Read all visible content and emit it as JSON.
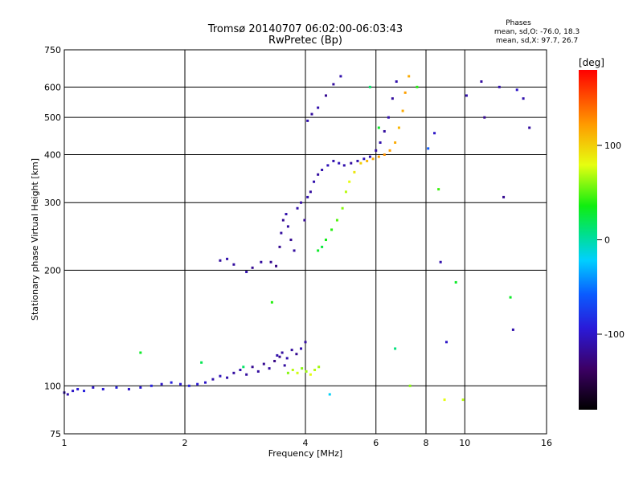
{
  "chart_data": {
    "type": "scatter",
    "title": "Tromsø 20140707 06:02:00-06:03:43",
    "subtitle": "RwPretec (Bp)",
    "xlabel": "Frequency [MHz]",
    "ylabel": "Stationary phase Virtual Height [km]",
    "x_scale": "log",
    "y_scale": "log",
    "xlim": [
      1,
      16
    ],
    "ylim": [
      75,
      750
    ],
    "x_ticks": [
      1,
      2,
      4,
      6,
      8,
      10,
      16
    ],
    "y_ticks": [
      75,
      100,
      200,
      300,
      400,
      500,
      600,
      750
    ],
    "grid": true,
    "phase_stats": {
      "title": "Phases",
      "line_o": "mean, sd,O: -76.0, 18.3",
      "line_x": "mean, sd,X:  97.7, 26.7"
    },
    "colorbar": {
      "label": "[deg]",
      "range": [
        -180,
        180
      ],
      "ticks": [
        100,
        0,
        -100
      ],
      "colormap": "rainbow"
    },
    "series": [
      {
        "points": [
          [
            1.0,
            96,
            -110
          ],
          [
            1.02,
            95,
            -110
          ],
          [
            1.05,
            97,
            -100
          ],
          [
            1.08,
            98,
            -95
          ],
          [
            1.12,
            97,
            -90
          ],
          [
            1.18,
            99,
            -100
          ],
          [
            1.25,
            98,
            -95
          ],
          [
            1.35,
            99,
            -90
          ],
          [
            1.45,
            98,
            -100
          ],
          [
            1.55,
            99,
            -95
          ],
          [
            1.65,
            100,
            -90
          ],
          [
            1.75,
            101,
            -100
          ],
          [
            1.85,
            102,
            -90
          ],
          [
            1.95,
            101,
            -95
          ],
          [
            2.05,
            100,
            -90
          ],
          [
            2.15,
            101,
            -95
          ],
          [
            2.25,
            102,
            -100
          ],
          [
            2.35,
            104,
            -110
          ],
          [
            2.45,
            106,
            -105
          ],
          [
            2.55,
            105,
            -110
          ],
          [
            2.65,
            108,
            -115
          ],
          [
            2.75,
            110,
            -110
          ],
          [
            2.85,
            107,
            -115
          ],
          [
            2.95,
            112,
            -120
          ],
          [
            3.05,
            109,
            -115
          ],
          [
            3.15,
            114,
            -120
          ],
          [
            3.25,
            111,
            -115
          ],
          [
            3.35,
            116,
            -125
          ],
          [
            3.45,
            119,
            -120
          ],
          [
            3.55,
            113,
            -115
          ],
          [
            3.62,
            108,
            60
          ],
          [
            3.72,
            110,
            70
          ],
          [
            3.82,
            108,
            75
          ],
          [
            3.92,
            111,
            60
          ],
          [
            4.02,
            109,
            65
          ],
          [
            4.12,
            107,
            80
          ],
          [
            4.22,
            110,
            70
          ],
          [
            4.32,
            112,
            65
          ]
        ]
      },
      {
        "points": [
          [
            2.45,
            212,
            -115
          ],
          [
            2.55,
            214,
            -110
          ],
          [
            2.65,
            207,
            -115
          ],
          [
            2.85,
            198,
            -110
          ],
          [
            2.95,
            203,
            -120
          ],
          [
            3.1,
            210,
            -115
          ],
          [
            3.28,
            210,
            -120
          ],
          [
            3.38,
            205,
            -125
          ],
          [
            3.45,
            230,
            -120
          ],
          [
            3.48,
            250,
            -115
          ],
          [
            3.52,
            270,
            -120
          ],
          [
            3.58,
            280,
            -110
          ],
          [
            3.62,
            260,
            -115
          ],
          [
            3.68,
            240,
            -120
          ],
          [
            3.75,
            225,
            -115
          ],
          [
            3.82,
            290,
            -110
          ],
          [
            3.9,
            300,
            -115
          ],
          [
            3.98,
            270,
            -120
          ],
          [
            4.05,
            310,
            -110
          ],
          [
            4.12,
            320,
            -115
          ],
          [
            4.2,
            340,
            -110
          ],
          [
            4.3,
            355,
            -115
          ],
          [
            4.4,
            365,
            -110
          ],
          [
            4.55,
            375,
            -105
          ],
          [
            4.7,
            385,
            -110
          ],
          [
            4.85,
            380,
            -105
          ],
          [
            5.0,
            375,
            -110
          ],
          [
            5.2,
            380,
            -115
          ],
          [
            5.4,
            385,
            -110
          ],
          [
            5.6,
            390,
            -105
          ],
          [
            5.8,
            395,
            -110
          ],
          [
            6.0,
            410,
            -115
          ],
          [
            6.15,
            430,
            -110
          ],
          [
            6.3,
            460,
            -115
          ],
          [
            6.45,
            500,
            -110
          ],
          [
            6.6,
            560,
            -115
          ],
          [
            6.75,
            620,
            -110
          ]
        ]
      },
      {
        "points": [
          [
            4.3,
            225,
            30
          ],
          [
            4.4,
            230,
            25
          ],
          [
            4.5,
            240,
            35
          ],
          [
            4.65,
            255,
            40
          ],
          [
            4.8,
            270,
            50
          ],
          [
            4.95,
            290,
            60
          ],
          [
            5.05,
            320,
            70
          ],
          [
            5.15,
            340,
            80
          ],
          [
            5.3,
            360,
            90
          ],
          [
            5.5,
            380,
            100
          ],
          [
            5.7,
            385,
            110
          ],
          [
            5.9,
            390,
            115
          ],
          [
            6.1,
            395,
            120
          ],
          [
            6.3,
            400,
            125
          ],
          [
            6.5,
            410,
            120
          ],
          [
            6.7,
            430,
            115
          ],
          [
            6.85,
            470,
            110
          ],
          [
            7.0,
            520,
            115
          ],
          [
            7.1,
            580,
            120
          ],
          [
            7.25,
            640,
            115
          ]
        ]
      },
      {
        "points": [
          [
            3.4,
            120,
            -110
          ],
          [
            3.5,
            122,
            -115
          ],
          [
            3.6,
            118,
            -110
          ],
          [
            3.7,
            124,
            -115
          ],
          [
            3.8,
            121,
            -120
          ],
          [
            3.9,
            125,
            -110
          ],
          [
            4.0,
            130,
            -115
          ]
        ]
      },
      {
        "points": [
          [
            4.05,
            490,
            -110
          ],
          [
            4.15,
            510,
            -115
          ],
          [
            4.3,
            530,
            -110
          ],
          [
            4.5,
            570,
            -120
          ],
          [
            4.7,
            610,
            -115
          ],
          [
            4.9,
            640,
            -110
          ]
        ]
      },
      {
        "points": [
          [
            1.55,
            122,
            30
          ],
          [
            2.2,
            115,
            20
          ],
          [
            2.8,
            112,
            15
          ],
          [
            3.3,
            165,
            40
          ],
          [
            4.6,
            95,
            -20
          ],
          [
            5.8,
            600,
            15
          ],
          [
            6.1,
            470,
            30
          ],
          [
            6.7,
            125,
            10
          ],
          [
            7.3,
            100,
            60
          ],
          [
            7.6,
            600,
            40
          ],
          [
            8.1,
            415,
            -60
          ],
          [
            8.4,
            455,
            -100
          ],
          [
            8.6,
            325,
            45
          ],
          [
            8.7,
            210,
            -110
          ],
          [
            8.9,
            92,
            80
          ],
          [
            9.0,
            130,
            -100
          ],
          [
            9.5,
            186,
            30
          ],
          [
            9.9,
            92,
            70
          ],
          [
            10.1,
            570,
            -110
          ],
          [
            11.0,
            620,
            -115
          ],
          [
            11.2,
            500,
            -120
          ],
          [
            12.2,
            600,
            -110
          ],
          [
            12.5,
            310,
            -120
          ],
          [
            13.0,
            170,
            30
          ],
          [
            13.2,
            140,
            -110
          ],
          [
            13.5,
            590,
            -100
          ],
          [
            14.0,
            560,
            -110
          ],
          [
            14.5,
            470,
            -115
          ]
        ]
      }
    ]
  }
}
